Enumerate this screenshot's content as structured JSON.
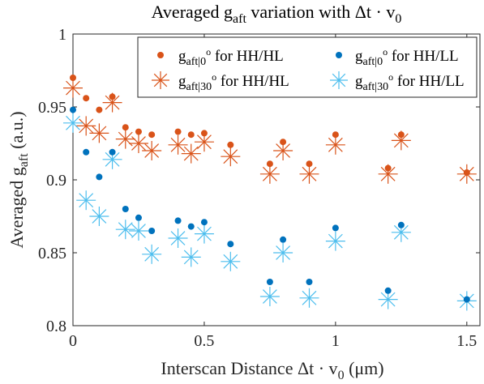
{
  "chart_data": {
    "type": "scatter",
    "title": {
      "prefix": "Averaged g",
      "sub": "aft",
      "middle": " variation with Δt · v",
      "sub2": "0"
    },
    "xlabel": {
      "prefix": "Interscan Distance Δt · v",
      "sub": "0",
      "suffix": " (μm)"
    },
    "ylabel": {
      "prefix": "Averaged g",
      "sub": "aft",
      "suffix": " (a.u.)"
    },
    "xlim": [
      0,
      1.55
    ],
    "ylim": [
      0.8,
      1.0
    ],
    "x_ticks": [
      0,
      0.5,
      1,
      1.5
    ],
    "x_tick_labels": [
      "0",
      "0.5",
      "1",
      "1.5"
    ],
    "y_ticks": [
      0.8,
      0.85,
      0.9,
      0.95,
      1.0
    ],
    "y_tick_labels": [
      "0.8",
      "0.85",
      "0.9",
      "0.95",
      "1"
    ],
    "grid": false,
    "legend_position": "top-right",
    "legend_columns": 2,
    "series": [
      {
        "name": "g_aft|0° for HH/HL",
        "legend": {
          "base": "g",
          "sub": "aft|0",
          "sup": "o",
          "rest": " for HH/HL"
        },
        "marker": "dot",
        "color": "#D95319",
        "x": [
          0,
          0.05,
          0.1,
          0.15,
          0.2,
          0.25,
          0.3,
          0.4,
          0.45,
          0.5,
          0.6,
          0.75,
          0.8,
          0.9,
          1.0,
          1.2,
          1.25,
          1.5
        ],
        "y": [
          0.97,
          0.956,
          0.948,
          0.957,
          0.936,
          0.933,
          0.931,
          0.933,
          0.931,
          0.932,
          0.924,
          0.911,
          0.926,
          0.911,
          0.931,
          0.908,
          0.931,
          0.905
        ]
      },
      {
        "name": "g_aft|0° for HH/LL",
        "legend": {
          "base": "g",
          "sub": "aft|0",
          "sup": "o",
          "rest": " for HH/LL"
        },
        "marker": "dot",
        "color": "#0072BD",
        "x": [
          0,
          0.05,
          0.1,
          0.15,
          0.2,
          0.25,
          0.3,
          0.4,
          0.45,
          0.5,
          0.6,
          0.75,
          0.8,
          0.9,
          1.0,
          1.2,
          1.25,
          1.5
        ],
        "y": [
          0.948,
          0.919,
          0.902,
          0.919,
          0.88,
          0.874,
          0.865,
          0.872,
          0.868,
          0.871,
          0.856,
          0.83,
          0.859,
          0.83,
          0.867,
          0.824,
          0.869,
          0.818
        ]
      },
      {
        "name": "g_aft|30° for HH/HL",
        "legend": {
          "base": "g",
          "sub": "aft|30",
          "sup": "o",
          "rest": " for HH/HL"
        },
        "marker": "asterisk",
        "color": "#D95319",
        "x": [
          0,
          0.05,
          0.1,
          0.15,
          0.2,
          0.25,
          0.3,
          0.4,
          0.45,
          0.5,
          0.6,
          0.75,
          0.8,
          0.9,
          1.0,
          1.2,
          1.25,
          1.5
        ],
        "y": [
          0.963,
          0.937,
          0.932,
          0.953,
          0.928,
          0.925,
          0.92,
          0.924,
          0.918,
          0.926,
          0.916,
          0.904,
          0.92,
          0.904,
          0.924,
          0.904,
          0.927,
          0.904
        ]
      },
      {
        "name": "g_aft|30° for HH/LL",
        "legend": {
          "base": "g",
          "sub": "aft|30",
          "sup": "o",
          "rest": " for HH/LL"
        },
        "marker": "asterisk",
        "color": "#4DBEEE",
        "x": [
          0,
          0.05,
          0.1,
          0.15,
          0.2,
          0.25,
          0.3,
          0.4,
          0.45,
          0.5,
          0.6,
          0.75,
          0.8,
          0.9,
          1.0,
          1.2,
          1.25,
          1.5
        ],
        "y": [
          0.939,
          0.886,
          0.875,
          0.914,
          0.866,
          0.865,
          0.849,
          0.86,
          0.847,
          0.863,
          0.844,
          0.82,
          0.85,
          0.819,
          0.858,
          0.818,
          0.864,
          0.817
        ]
      }
    ]
  }
}
